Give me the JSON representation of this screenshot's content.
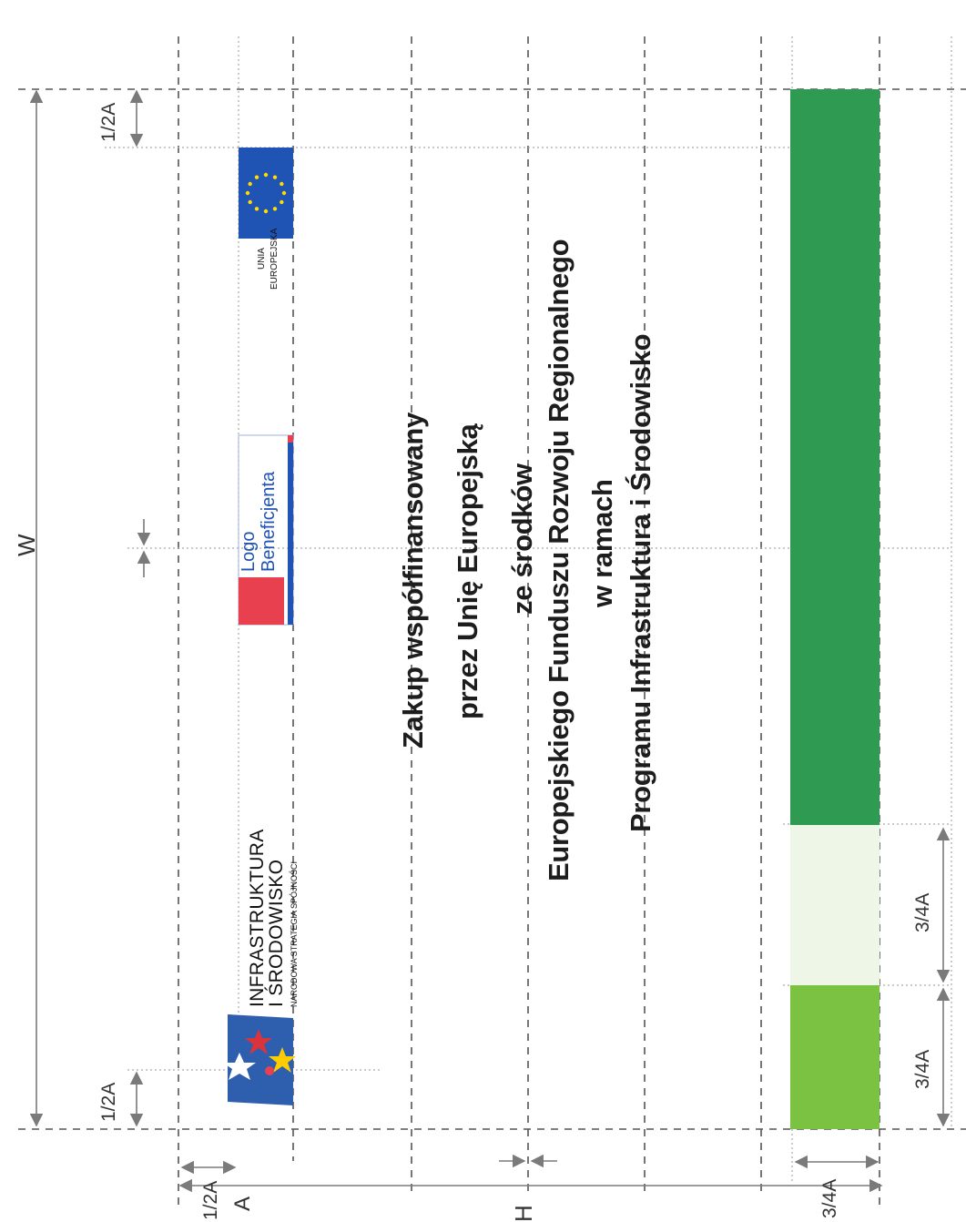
{
  "dimensions": {
    "width_label": "W",
    "height_label": "H",
    "a_label": "A",
    "half_a_label": "1/2A",
    "three_quarter_a_label": "3/4A"
  },
  "logos": {
    "infrastruktura_line1": "INFRASTRUKTURA",
    "infrastruktura_line2": "I ŚRODOWISKO",
    "infrastruktura_tagline": "NARODOWA STRATEGIA SPÓJNOŚCI",
    "beneficjent_line1": "Logo",
    "beneficjent_line2": "Beneficjenta",
    "eu_line1": "UNIA",
    "eu_line2": "EUROPEJSKA"
  },
  "message": {
    "line1": "Zakup współfinansowany",
    "line2": "przez Unię Europejską",
    "line3": "ze środków",
    "line4": "Europejskiego Funduszu Rozwoju Regionalnego",
    "line5": "w ramach",
    "line6": "Programu Infrastruktura i Środowisko"
  },
  "colors": {
    "stripe_dark_green": "#2e9a52",
    "stripe_light": "#eef6e8",
    "stripe_lime": "#7cc242",
    "eu_blue": "#1f53b4",
    "eu_star": "#ffdd00",
    "beneficjent_red": "#e8404f",
    "beneficjent_blue": "#1f53b4"
  }
}
